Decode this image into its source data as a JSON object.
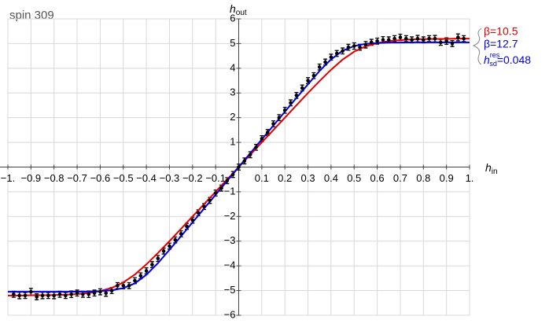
{
  "chart_data": {
    "type": "scatter",
    "title": "spin 309",
    "x_label": {
      "text": "h",
      "subscript": "in"
    },
    "y_label": {
      "text": "h",
      "subscript": "out"
    },
    "xlim": [
      -1,
      1
    ],
    "ylim": [
      -6,
      6
    ],
    "xticks": [
      {
        "value": -1,
        "label": "−1."
      },
      {
        "value": -0.9,
        "label": "−0.9"
      },
      {
        "value": -0.8,
        "label": "−0.8"
      },
      {
        "value": -0.7,
        "label": "−0.7"
      },
      {
        "value": -0.6,
        "label": "−0.6"
      },
      {
        "value": -0.5,
        "label": "−0.5"
      },
      {
        "value": -0.4,
        "label": "−0.4"
      },
      {
        "value": -0.3,
        "label": "−0.3"
      },
      {
        "value": -0.2,
        "label": "−0.2"
      },
      {
        "value": -0.1,
        "label": "−0.1"
      },
      0.1,
      0.2,
      0.3,
      0.4,
      0.5,
      0.6,
      0.7,
      0.8,
      0.9,
      {
        "value": 1,
        "label": "1."
      }
    ],
    "yticks": [
      {
        "value": -6,
        "label": "−6"
      },
      {
        "value": -5,
        "label": "−5"
      },
      {
        "value": -4,
        "label": "−4"
      },
      {
        "value": -3,
        "label": "−3"
      },
      {
        "value": -2,
        "label": "−2"
      },
      {
        "value": -1,
        "label": "−1"
      },
      1,
      2,
      3,
      4,
      5,
      6
    ],
    "grid": true,
    "points": {
      "color": "#000000",
      "x": [
        -0.975,
        -0.95,
        -0.925,
        -0.9,
        -0.875,
        -0.85,
        -0.825,
        -0.8,
        -0.775,
        -0.75,
        -0.725,
        -0.7,
        -0.675,
        -0.65,
        -0.625,
        -0.6,
        -0.575,
        -0.55,
        -0.525,
        -0.5,
        -0.475,
        -0.45,
        -0.425,
        -0.4,
        -0.375,
        -0.35,
        -0.325,
        -0.3,
        -0.275,
        -0.25,
        -0.225,
        -0.2,
        -0.175,
        -0.15,
        -0.125,
        -0.1,
        -0.075,
        -0.05,
        -0.025,
        0,
        0.025,
        0.05,
        0.075,
        0.1,
        0.125,
        0.15,
        0.175,
        0.2,
        0.225,
        0.25,
        0.275,
        0.3,
        0.325,
        0.35,
        0.375,
        0.4,
        0.425,
        0.45,
        0.475,
        0.5,
        0.525,
        0.55,
        0.575,
        0.6,
        0.625,
        0.65,
        0.675,
        0.7,
        0.725,
        0.75,
        0.775,
        0.8,
        0.825,
        0.85,
        0.875,
        0.9,
        0.925,
        0.95,
        0.975
      ],
      "values": [
        -5.15,
        -5.2,
        -5.2,
        -5.05,
        -5.25,
        -5.2,
        -5.2,
        -5.2,
        -5.15,
        -5.2,
        -5.15,
        -5.1,
        -5.15,
        -5.15,
        -5.1,
        -5.05,
        -5.1,
        -5.0,
        -4.8,
        -4.8,
        -4.8,
        -4.6,
        -4.4,
        -4.2,
        -3.95,
        -3.7,
        -3.4,
        -3.2,
        -2.95,
        -2.7,
        -2.4,
        -2.15,
        -1.85,
        -1.6,
        -1.35,
        -1.05,
        -0.85,
        -0.55,
        -0.3,
        0,
        0.25,
        0.5,
        0.8,
        1.15,
        1.4,
        1.75,
        2.0,
        2.3,
        2.6,
        2.9,
        3.2,
        3.5,
        3.7,
        4.05,
        4.25,
        4.45,
        4.6,
        4.7,
        4.85,
        4.9,
        4.85,
        4.95,
        5.05,
        5.1,
        5.15,
        5.15,
        5.2,
        5.25,
        5.2,
        5.15,
        5.2,
        5.15,
        5.2,
        5.2,
        5.05,
        5.1,
        5.0,
        5.25,
        5.2
      ],
      "errors": [
        0.12,
        0.13,
        0.12,
        0.14,
        0.12,
        0.13,
        0.12,
        0.13,
        0.12,
        0.12,
        0.13,
        0.12,
        0.12,
        0.13,
        0.12,
        0.12,
        0.13,
        0.12,
        0.12,
        0.13,
        0.12,
        0.12,
        0.12,
        0.12,
        0.12,
        0.12,
        0.12,
        0.12,
        0.12,
        0.12,
        0.12,
        0.12,
        0.12,
        0.12,
        0.12,
        0.12,
        0.12,
        0.12,
        0.12,
        0.12,
        0.12,
        0.12,
        0.12,
        0.12,
        0.12,
        0.12,
        0.12,
        0.12,
        0.12,
        0.12,
        0.12,
        0.12,
        0.12,
        0.12,
        0.12,
        0.12,
        0.12,
        0.12,
        0.12,
        0.13,
        0.12,
        0.13,
        0.12,
        0.12,
        0.13,
        0.12,
        0.12,
        0.13,
        0.12,
        0.12,
        0.13,
        0.12,
        0.12,
        0.13,
        0.12,
        0.13,
        0.12,
        0.14,
        0.12
      ]
    },
    "x": [
      -1,
      -0.95,
      -0.9,
      -0.85,
      -0.8,
      -0.75,
      -0.7,
      -0.65,
      -0.6,
      -0.55,
      -0.5,
      -0.45,
      -0.4,
      -0.35,
      -0.3,
      -0.25,
      -0.2,
      -0.15,
      -0.1,
      -0.05,
      0,
      0.05,
      0.1,
      0.15,
      0.2,
      0.25,
      0.3,
      0.35,
      0.4,
      0.45,
      0.5,
      0.55,
      0.6,
      0.65,
      0.7,
      0.75,
      0.8,
      0.85,
      0.9,
      0.95,
      1
    ],
    "series": [
      {
        "name": "β=10.5",
        "color": "#e00000",
        "values": [
          -5.2,
          -5.2,
          -5.19,
          -5.19,
          -5.18,
          -5.17,
          -5.14,
          -5.1,
          -5.02,
          -4.89,
          -4.67,
          -4.35,
          -3.94,
          -3.48,
          -3.0,
          -2.5,
          -2.0,
          -1.5,
          -1.0,
          -0.5,
          0,
          0.5,
          1.0,
          1.5,
          2.0,
          2.5,
          3.0,
          3.48,
          3.94,
          4.35,
          4.67,
          4.89,
          5.02,
          5.1,
          5.14,
          5.17,
          5.18,
          5.19,
          5.19,
          5.2,
          5.2
        ]
      },
      {
        "name": "β=12.7",
        "color": "#0000e0",
        "values": [
          -5.05,
          -5.05,
          -5.05,
          -5.05,
          -5.05,
          -5.05,
          -5.04,
          -5.04,
          -5.02,
          -4.99,
          -4.9,
          -4.71,
          -4.36,
          -3.89,
          -3.35,
          -2.8,
          -2.24,
          -1.68,
          -1.12,
          -0.56,
          0,
          0.56,
          1.12,
          1.68,
          2.24,
          2.8,
          3.35,
          3.89,
          4.36,
          4.71,
          4.9,
          4.99,
          5.02,
          5.04,
          5.04,
          5.05,
          5.05,
          5.05,
          5.05,
          5.05,
          5.05
        ]
      }
    ],
    "annotation": {
      "text": "h",
      "superscript": "res",
      "subscript": "sd",
      "suffix": "=0.048",
      "color": "#0000e0"
    }
  }
}
